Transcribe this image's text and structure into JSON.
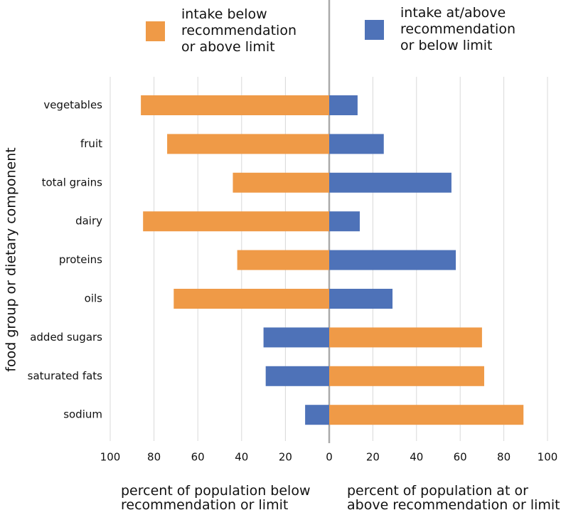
{
  "chart_data": {
    "type": "diverging-bar",
    "y_label": "food group or dietary component",
    "categories": [
      "vegetables",
      "fruit",
      "total grains",
      "dairy",
      "proteins",
      "oils",
      "added sugars",
      "saturated fats",
      "sodium"
    ],
    "series": [
      {
        "name": "intake below recommendation or above limit",
        "color": "#ef9a47",
        "values": [
          86,
          74,
          44,
          85,
          42,
          71,
          70,
          71,
          89
        ],
        "side": [
          "left",
          "left",
          "left",
          "left",
          "left",
          "left",
          "right",
          "right",
          "right"
        ]
      },
      {
        "name": "intake at/above recommendation or below limit",
        "color": "#4e72b8",
        "values": [
          13,
          25,
          56,
          14,
          58,
          29,
          30,
          29,
          11
        ],
        "side": [
          "right",
          "right",
          "right",
          "right",
          "right",
          "right",
          "left",
          "left",
          "left"
        ]
      }
    ],
    "left_axis": {
      "label": "percent of population below recommendation or limit",
      "xlim": [
        100,
        0
      ],
      "xticks": [
        100,
        80,
        60,
        40,
        20
      ]
    },
    "right_axis": {
      "label": "percent of population at or above recommendation or limit",
      "xlim": [
        0,
        100
      ],
      "xticks": [
        0,
        20,
        40,
        60,
        80,
        100
      ]
    },
    "grid": true
  }
}
